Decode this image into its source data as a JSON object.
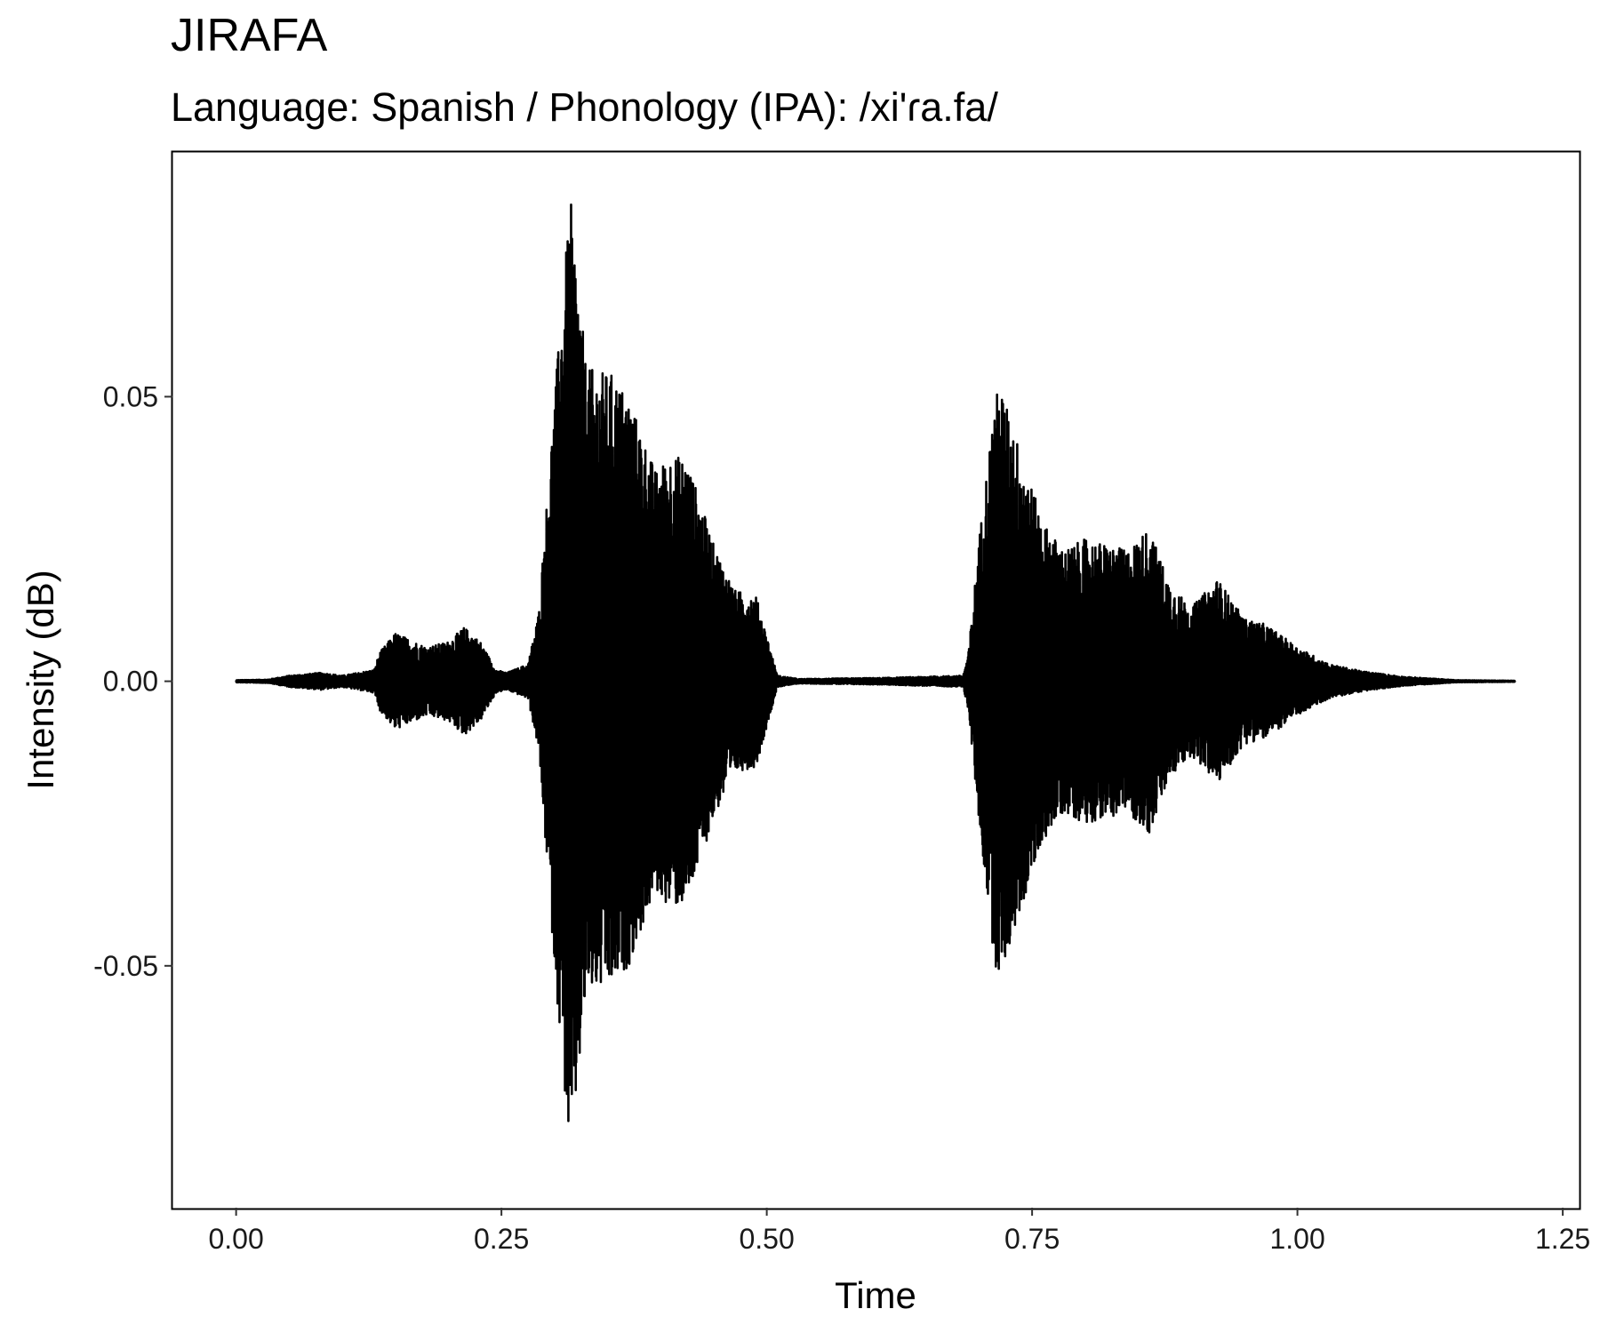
{
  "chart_data": {
    "type": "line",
    "title": "JIRAFA",
    "subtitle": "Language: Spanish / Phonology (IPA): /xi'ɾa.fa/",
    "xlabel": "Time",
    "ylabel": "Intensity (dB)",
    "xlim": [
      -0.06,
      1.265
    ],
    "ylim": [
      -0.0925,
      0.093
    ],
    "x_ticks": [
      0.0,
      0.25,
      0.5,
      0.75,
      1.0,
      1.25
    ],
    "x_tick_labels": [
      "0.00",
      "0.25",
      "0.50",
      "0.75",
      "1.00",
      "1.25"
    ],
    "y_ticks": [
      -0.05,
      0.0,
      0.05
    ],
    "y_tick_labels": [
      "-0.05",
      "0.00",
      "0.05"
    ],
    "grid": false,
    "color": "#000000",
    "duration": 1.205,
    "envelope": {
      "x": [
        0.0,
        0.03,
        0.05,
        0.08,
        0.1,
        0.13,
        0.135,
        0.15,
        0.18,
        0.2,
        0.215,
        0.23,
        0.245,
        0.255,
        0.275,
        0.285,
        0.3,
        0.315,
        0.33,
        0.355,
        0.37,
        0.395,
        0.41,
        0.425,
        0.45,
        0.47,
        0.49,
        0.5,
        0.51,
        0.53,
        0.61,
        0.685,
        0.69,
        0.7,
        0.715,
        0.72,
        0.74,
        0.76,
        0.78,
        0.8,
        0.84,
        0.86,
        0.88,
        0.9,
        0.925,
        0.95,
        0.97,
        1.0,
        1.03,
        1.06,
        1.1,
        1.15,
        1.205
      ],
      "values": [
        0.0002,
        0.0003,
        0.001,
        0.0015,
        0.001,
        0.002,
        0.005,
        0.0085,
        0.006,
        0.007,
        0.0095,
        0.007,
        0.002,
        0.0015,
        0.003,
        0.012,
        0.05,
        0.085,
        0.055,
        0.054,
        0.05,
        0.037,
        0.04,
        0.039,
        0.024,
        0.016,
        0.015,
        0.008,
        0.001,
        0.0004,
        0.0006,
        0.001,
        0.005,
        0.025,
        0.05,
        0.052,
        0.04,
        0.028,
        0.023,
        0.025,
        0.023,
        0.027,
        0.017,
        0.013,
        0.018,
        0.011,
        0.01,
        0.006,
        0.003,
        0.0018,
        0.0008,
        0.0002,
        0.0001
      ]
    }
  }
}
